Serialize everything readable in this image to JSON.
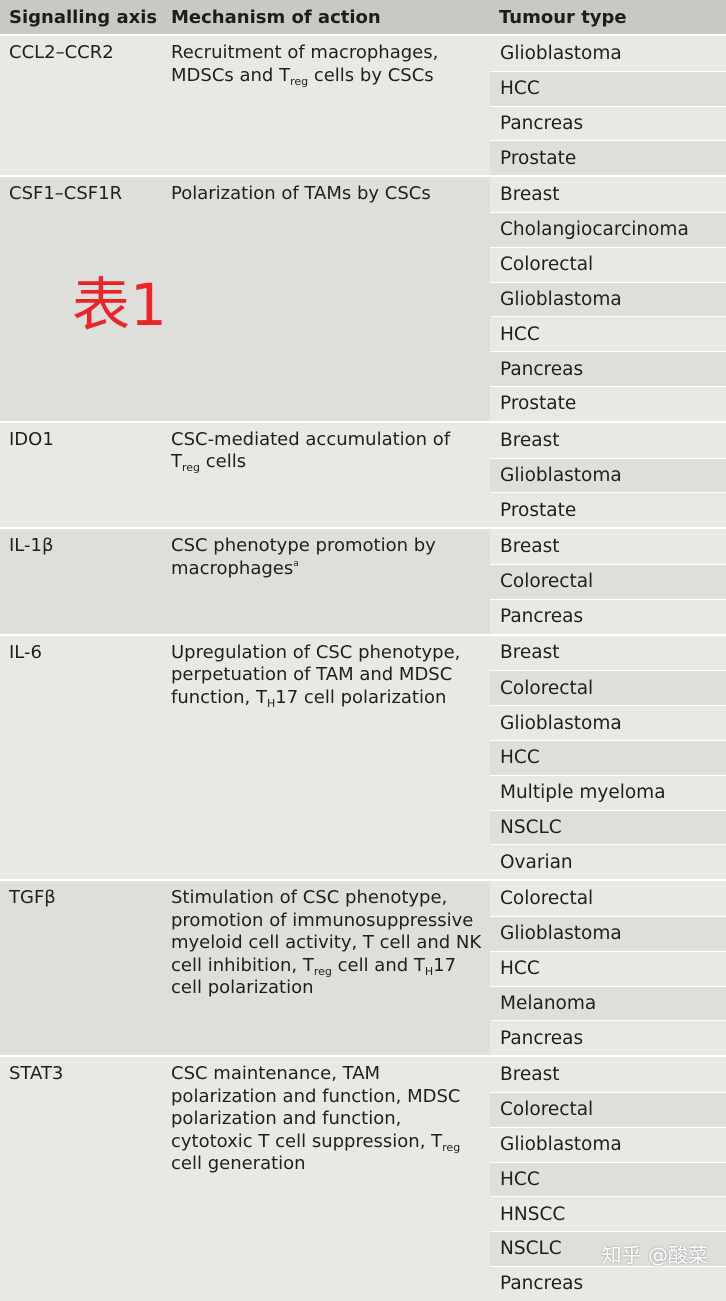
{
  "headers": {
    "axis": "Signalling axis",
    "mechanism": "Mechanism of action",
    "tumour": "Tumour type"
  },
  "groups": [
    {
      "axis": "CCL2–CCR2",
      "mechanism_parts": [
        "Recruitment of macrophages, MDSCs and T",
        "reg",
        " cells by CSCs"
      ],
      "tumours": [
        "Glioblastoma",
        "HCC",
        "Pancreas",
        "Prostate"
      ]
    },
    {
      "axis": "CSF1–CSF1R",
      "mechanism_parts": [
        "Polarization of TAMs by CSCs"
      ],
      "tumours": [
        "Breast",
        "Cholangiocarcinoma",
        "Colorectal",
        "Glioblastoma",
        "HCC",
        "Pancreas",
        "Prostate"
      ]
    },
    {
      "axis": "IDO1",
      "mechanism_parts": [
        "CSC-mediated accumulation of",
        "T",
        "reg",
        " cells"
      ],
      "tumours": [
        "Breast",
        "Glioblastoma",
        "Prostate"
      ]
    },
    {
      "axis": "IL-1β",
      "mechanism_parts": [
        "CSC phenotype promotion by",
        "macrophages",
        "a"
      ],
      "tumours": [
        "Breast",
        "Colorectal",
        "Pancreas"
      ]
    },
    {
      "axis": "IL-6",
      "mechanism_parts": [
        "Upregulation of CSC phenotype, perpetuation of TAM and MDSC function, T",
        "H",
        "17 cell polarization"
      ],
      "tumours": [
        "Breast",
        "Colorectal",
        "Glioblastoma",
        "HCC",
        "Multiple myeloma",
        "NSCLC",
        "Ovarian"
      ]
    },
    {
      "axis": "TGFβ",
      "mechanism_parts": [
        "Stimulation of CSC phenotype, promotion of immunosuppressive myeloid cell activity, T cell and NK cell inhibition, T",
        "reg",
        " cell and T",
        "H",
        "17 cell polarization"
      ],
      "tumours": [
        "Colorectal",
        "Glioblastoma",
        "HCC",
        "Melanoma",
        "Pancreas"
      ]
    },
    {
      "axis": "STAT3",
      "mechanism_parts": [
        "CSC maintenance, TAM polarization and function, MDSC polarization and function, cytotoxic T cell suppression, T",
        "reg",
        " cell generation"
      ],
      "tumours": [
        "Breast",
        "Colorectal",
        "Glioblastoma",
        "HCC",
        "HNSCC",
        "NSCLC",
        "Pancreas"
      ]
    }
  ],
  "overlay_label": "表1",
  "watermark": "知乎 @酸菜"
}
